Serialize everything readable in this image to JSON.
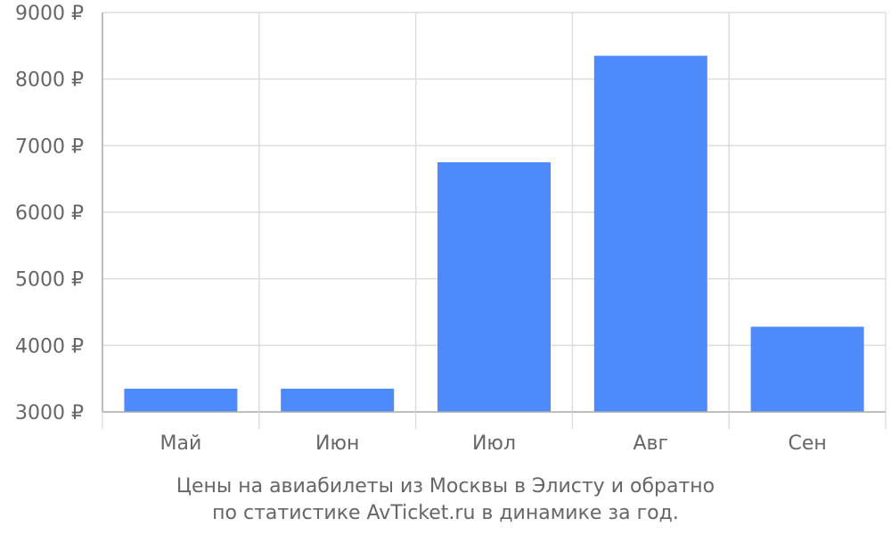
{
  "chart_data": {
    "type": "bar",
    "categories": [
      "Май",
      "Июн",
      "Июл",
      "Авг",
      "Сен"
    ],
    "values": [
      3350,
      3350,
      6750,
      8350,
      4280
    ],
    "ylim": [
      3000,
      9000
    ],
    "yticks": [
      3000,
      4000,
      5000,
      6000,
      7000,
      8000,
      9000
    ],
    "ytick_labels": [
      "3000 ₽",
      "4000 ₽",
      "5000 ₽",
      "6000 ₽",
      "7000 ₽",
      "8000 ₽",
      "9000 ₽"
    ],
    "grid": true,
    "bar_color": "#4d8afc",
    "grid_color": "#dddddd",
    "axis_color": "#aaaaaa",
    "text_color": "#666666"
  },
  "caption": {
    "line1": "Цены на авиабилеты из Москвы в Элисту и обратно",
    "line2": "по статистике AvTicket.ru в динамике за год."
  }
}
